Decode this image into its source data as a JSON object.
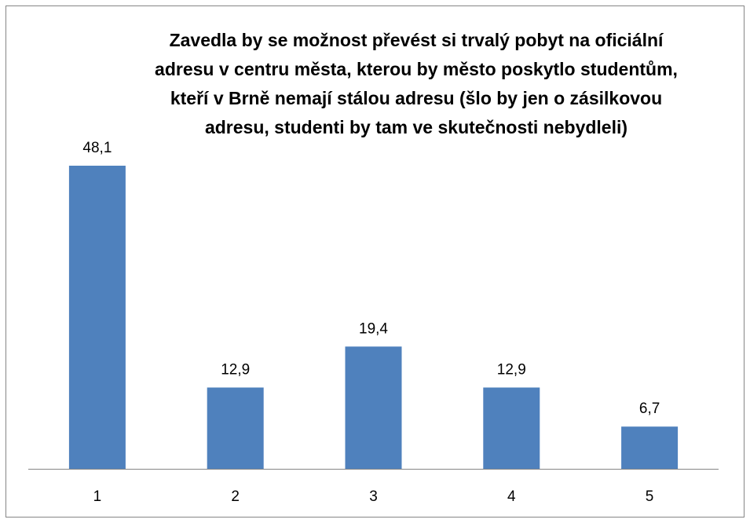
{
  "chart_data": {
    "type": "bar",
    "title": "Zavedla by se možnost převést si trvalý pobyt na oficiální adresu v centru města, kterou by město poskytlo studentům, kteří v Brně nemají stálou adresu (šlo by jen o zásilkovou adresu, studenti by tam ve skutečnosti nebydleli)",
    "categories": [
      "1",
      "2",
      "3",
      "4",
      "5"
    ],
    "values": [
      48.1,
      12.9,
      19.4,
      12.9,
      6.7
    ],
    "value_labels": [
      "48,1",
      "12,9",
      "19,4",
      "12,9",
      "6,7"
    ],
    "color": "#4f81bd"
  }
}
